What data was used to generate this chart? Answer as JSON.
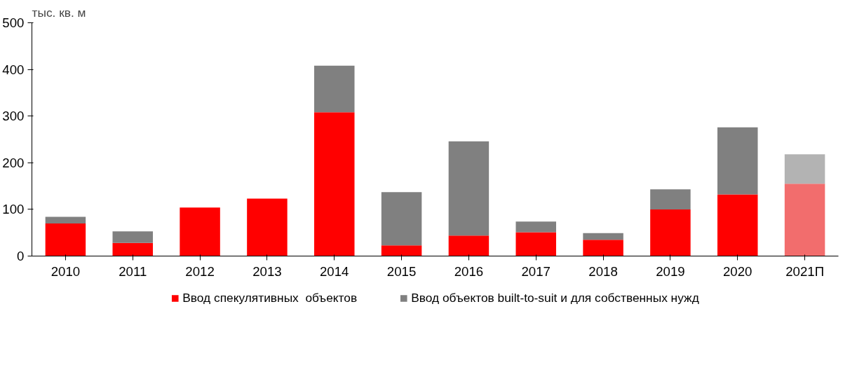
{
  "chart_data": {
    "type": "bar",
    "stacked": true,
    "ylabel": "тыс. кв. м",
    "categories": [
      "2010",
      "2011",
      "2012",
      "2013",
      "2014",
      "2015",
      "2016",
      "2017",
      "2018",
      "2019",
      "2020",
      "2021П"
    ],
    "series": [
      {
        "name": "Ввод спекулятивных  объектов",
        "color": "#ff0000",
        "colors": [
          "#ff0000",
          "#ff0000",
          "#ff0000",
          "#ff0000",
          "#ff0000",
          "#ff0000",
          "#ff0000",
          "#ff0000",
          "#ff0000",
          "#ff0000",
          "#ff0000",
          "#f26d6d"
        ],
        "values": [
          70,
          28,
          104,
          123,
          308,
          23,
          44,
          51,
          35,
          100,
          132,
          155
        ]
      },
      {
        "name": "Ввод объектов built-to-suit и для собственных нужд",
        "color": "#808080",
        "colors": [
          "#808080",
          "#808080",
          "#808080",
          "#808080",
          "#808080",
          "#808080",
          "#808080",
          "#808080",
          "#808080",
          "#808080",
          "#808080",
          "#b3b3b3"
        ],
        "values": [
          14,
          25,
          0,
          0,
          100,
          114,
          202,
          23,
          14,
          43,
          144,
          63
        ]
      }
    ],
    "ylim": [
      0,
      500
    ],
    "yticks": [
      0,
      100,
      200,
      300,
      400,
      500
    ],
    "grid": false,
    "legend": "bottom"
  }
}
